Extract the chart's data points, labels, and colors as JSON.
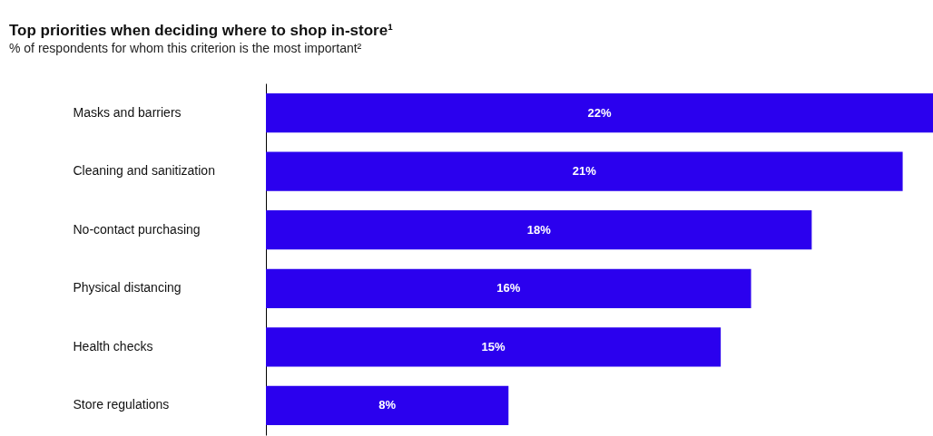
{
  "chart_data": {
    "type": "bar",
    "orientation": "horizontal",
    "title": "Top priorities when deciding where to shop in-store¹",
    "subtitle": "% of respondents for whom this criterion is the most important²",
    "categories": [
      "Masks and barriers",
      "Cleaning and sanitization",
      "No-contact purchasing",
      "Physical distancing",
      "Health checks",
      "Store regulations"
    ],
    "values": [
      22,
      21,
      18,
      16,
      15,
      8
    ],
    "value_labels": [
      "22%",
      "21%",
      "18%",
      "16%",
      "15%",
      "8%"
    ],
    "color": "#2b00ee"
  }
}
